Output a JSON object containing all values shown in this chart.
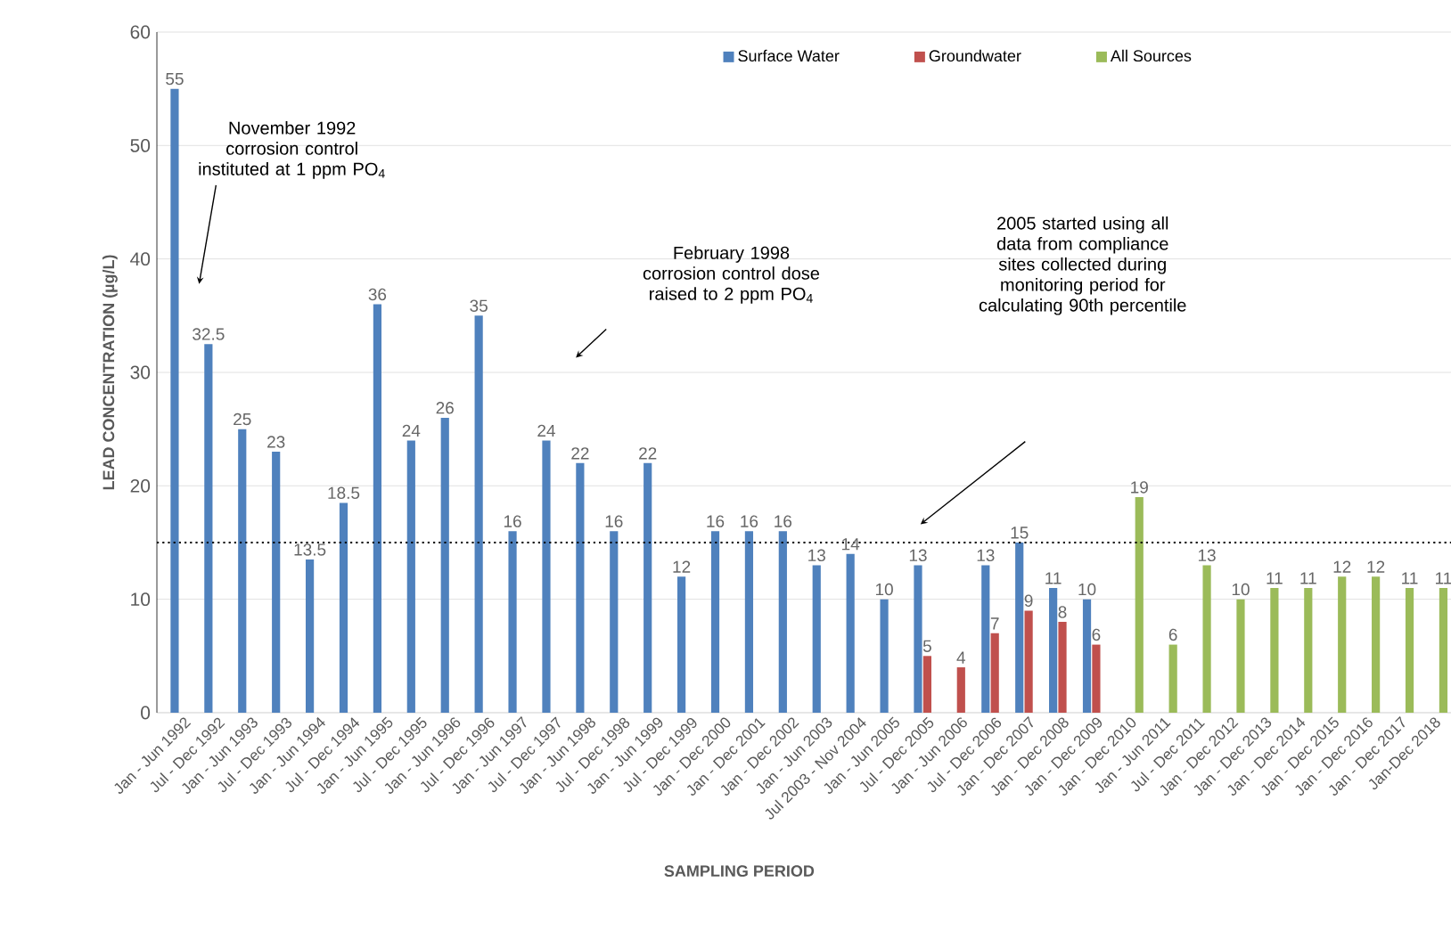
{
  "chart_data": {
    "type": "bar",
    "xlabel": "SAMPLING PERIOD",
    "ylabel": "LEAD CONCENTRATION (µg/L)",
    "categories": [
      "Jan - Jun 1992",
      "Jul - Dec 1992",
      "Jan - Jun 1993",
      "Jul - Dec 1993",
      "Jan - Jun 1994",
      "Jul - Dec 1994",
      "Jan - Jun 1995",
      "Jul - Dec 1995",
      "Jan - Jun 1996",
      "Jul - Dec 1996",
      "Jan - Jun 1997",
      "Jul - Dec 1997",
      "Jan - Jun 1998",
      "Jul - Dec 1998",
      "Jan - Jun 1999",
      "Jul - Dec 1999",
      "Jan - Dec 2000",
      "Jan - Dec 2001",
      "Jan - Dec 2002",
      "Jan - Jun 2003",
      "Jul 2003 - Nov 2004",
      "Jan - Jun 2005",
      "Jul  - Dec 2005",
      "Jan - Jun 2006",
      "Jul - Dec 2006",
      "Jan - Dec 2007",
      "Jan - Dec 2008",
      "Jan - Dec 2009",
      "Jan - Dec 2010",
      "Jan - Jun 2011",
      "Jul - Dec 2011",
      "Jan - Dec 2012",
      "Jan - Dec 2013",
      "Jan - Dec 2014",
      "Jan - Dec 2015",
      "Jan - Dec 2016",
      "Jan - Dec 2017",
      "Jan-Dec 2018"
    ],
    "series": [
      {
        "name": "Surface Water",
        "color": "#4f81bd",
        "values": [
          55,
          32.5,
          25,
          23,
          13.5,
          18.5,
          36,
          24,
          26,
          35,
          16,
          24,
          22,
          16,
          22,
          12,
          16,
          16,
          16,
          13,
          14,
          10,
          13,
          null,
          13,
          15,
          11,
          10,
          null,
          null,
          null,
          null,
          null,
          null,
          null,
          null,
          null,
          null
        ],
        "value_labels": [
          "55",
          "32.5",
          "25",
          "23",
          "13.5",
          "18.5",
          "36",
          "24",
          "26",
          "35",
          "16",
          "24",
          "22",
          "16",
          "22",
          "12",
          "16",
          "16",
          "16",
          "13",
          "14",
          "10",
          "13",
          null,
          "13",
          "15",
          "11",
          "10",
          null,
          null,
          null,
          null,
          null,
          null,
          null,
          null,
          null,
          null
        ]
      },
      {
        "name": "Groundwater",
        "color": "#c0504d",
        "values": [
          null,
          null,
          null,
          null,
          null,
          null,
          null,
          null,
          null,
          null,
          null,
          null,
          null,
          null,
          null,
          null,
          null,
          null,
          null,
          null,
          null,
          null,
          5,
          4,
          7,
          9,
          8,
          6,
          null,
          null,
          null,
          null,
          null,
          null,
          null,
          null,
          null,
          null
        ],
        "value_labels": [
          null,
          null,
          null,
          null,
          null,
          null,
          null,
          null,
          null,
          null,
          null,
          null,
          null,
          null,
          null,
          null,
          null,
          null,
          null,
          null,
          null,
          null,
          "5",
          "4",
          "7",
          "9",
          "8",
          "6",
          null,
          null,
          null,
          null,
          null,
          null,
          null,
          null,
          null,
          null
        ]
      },
      {
        "name": "All Sources",
        "color": "#9bbb59",
        "values": [
          null,
          null,
          null,
          null,
          null,
          null,
          null,
          null,
          null,
          null,
          null,
          null,
          null,
          null,
          null,
          null,
          null,
          null,
          null,
          null,
          null,
          null,
          null,
          null,
          null,
          null,
          null,
          null,
          19,
          6,
          13,
          10,
          11,
          11,
          12,
          12,
          11,
          11
        ],
        "value_labels": [
          null,
          null,
          null,
          null,
          null,
          null,
          null,
          null,
          null,
          null,
          null,
          null,
          null,
          null,
          null,
          null,
          null,
          null,
          null,
          null,
          null,
          null,
          null,
          null,
          null,
          null,
          null,
          null,
          "19",
          "6",
          "13",
          "10",
          "11",
          "11",
          "12",
          "12",
          "11",
          "11"
        ]
      }
    ],
    "ylim": [
      0,
      60
    ],
    "yticks": [
      0,
      10,
      20,
      30,
      40,
      50,
      60
    ],
    "grid": "y",
    "legend": "top",
    "ref_lines": [
      {
        "axis": "y",
        "value": 15,
        "color": "#000000",
        "line_style": "dotted"
      }
    ],
    "annotations": [
      "November 1992 corrosion control instituted at 1 ppm PO$_{4}$",
      "February 1998 corrosion control dose raised to 2 ppm PO$_{4}$",
      "2005 started  using all data from compliance sites collected during monitoring period for calculating 90th percentile"
    ]
  }
}
